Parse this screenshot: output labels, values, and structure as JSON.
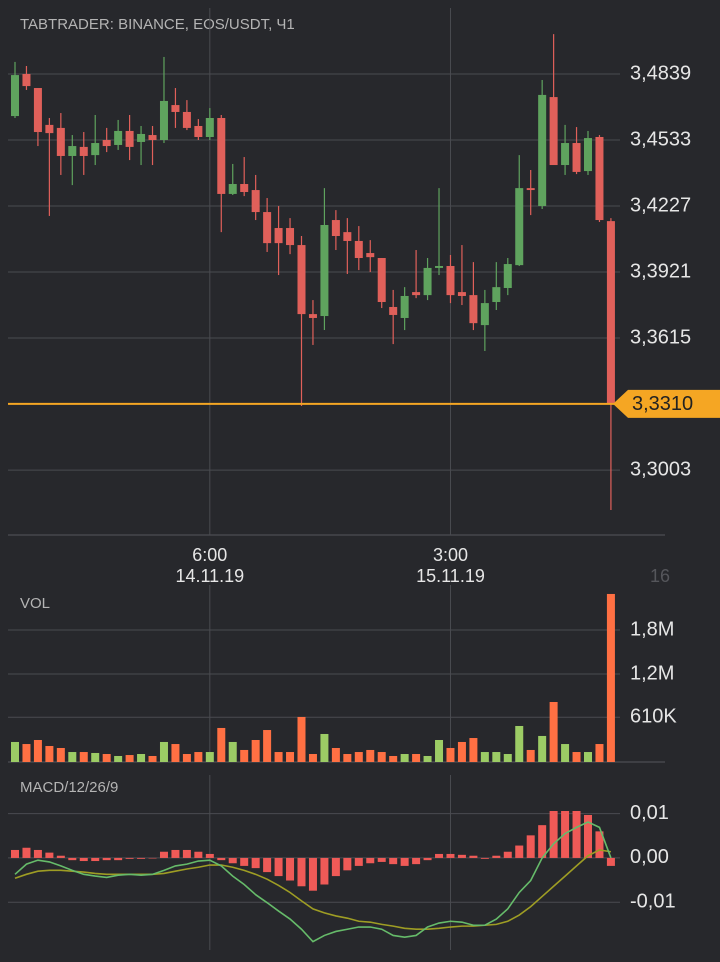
{
  "chart_data": [
    {
      "type": "candlestick",
      "title": "TABTRADER: BINANCE, EOS/USDT, Ч1",
      "categories": [
        null,
        null,
        null,
        null,
        null,
        null,
        null,
        null,
        null,
        null,
        null,
        null,
        null,
        null,
        null,
        null,
        null,
        "6:00",
        null,
        null,
        null,
        null,
        null,
        null,
        null,
        null,
        null,
        null,
        null,
        null,
        null,
        null,
        null,
        null,
        null,
        null,
        null,
        null,
        "3:00",
        null,
        null,
        null,
        null,
        null,
        null,
        null,
        null,
        null,
        null,
        null,
        null,
        null,
        null
      ],
      "category_dates": [
        null,
        null,
        null,
        null,
        null,
        null,
        null,
        null,
        null,
        null,
        null,
        null,
        null,
        null,
        null,
        null,
        null,
        "14.11.19",
        null,
        null,
        null,
        null,
        null,
        null,
        null,
        null,
        null,
        null,
        null,
        null,
        null,
        null,
        null,
        null,
        null,
        null,
        null,
        null,
        "15.11.19",
        null,
        null,
        null,
        null,
        null,
        null,
        null,
        null,
        null,
        null,
        null,
        null,
        null,
        null
      ],
      "edge_label": "16",
      "open": [
        3.4644,
        3.4839,
        3.4774,
        3.4603,
        3.4589,
        3.4459,
        3.4501,
        3.4463,
        3.4533,
        3.451,
        3.4575,
        3.4524,
        3.4556,
        3.4533,
        3.4695,
        3.4663,
        3.4598,
        3.4547,
        3.4635,
        3.4283,
        3.4329,
        3.4301,
        3.4199,
        3.4125,
        3.4125,
        3.4046,
        3.3726,
        3.3717,
        3.4162,
        3.4106,
        3.4065,
        3.4009,
        3.3986,
        3.3759,
        3.3708,
        3.3828,
        3.3814,
        3.394,
        3.3949,
        3.3828,
        3.3814,
        3.3675,
        3.3782,
        3.3847,
        3.3953,
        3.431,
        3.4227,
        3.4732,
        3.4417,
        3.4519,
        3.4389,
        3.4547,
        3.4157
      ],
      "high": [
        3.4895,
        3.4876,
        3.4774,
        3.4635,
        3.4658,
        3.4556,
        3.457,
        3.4649,
        3.4589,
        3.4626,
        3.4649,
        3.4598,
        3.4598,
        3.4918,
        3.4774,
        3.4718,
        3.463,
        3.4681,
        3.4649,
        3.4422,
        3.4454,
        3.4371,
        3.4264,
        3.4227,
        3.4171,
        3.4088,
        3.3791,
        3.431,
        3.4208,
        3.4171,
        3.4134,
        3.4069,
        3.3986,
        3.3838,
        3.3851,
        3.4023,
        3.3986,
        3.431,
        3.4,
        3.4046,
        3.3967,
        3.3838,
        3.3967,
        3.3986,
        3.4463,
        3.4394,
        3.4811,
        3.5024,
        3.4603,
        3.4593,
        3.4575,
        3.4556,
        3.4171
      ],
      "low": [
        3.4635,
        3.4765,
        3.4505,
        3.4181,
        3.4371,
        3.4324,
        3.4371,
        3.4417,
        3.4477,
        3.4487,
        3.444,
        3.4417,
        3.4417,
        3.4519,
        3.4589,
        3.4579,
        3.4533,
        3.4533,
        3.4106,
        3.4278,
        3.4273,
        3.4162,
        3.4014,
        3.3907,
        3.4004,
        3.33,
        3.3583,
        3.3652,
        3.4023,
        3.3912,
        3.393,
        3.3921,
        3.3754,
        3.3587,
        3.3652,
        3.38,
        3.3791,
        3.3907,
        3.3777,
        3.3768,
        3.3652,
        3.3555,
        3.3745,
        3.3814,
        3.3949,
        3.4185,
        3.4213,
        3.4417,
        3.4371,
        3.4375,
        3.4371,
        3.4153,
        3.2818
      ],
      "close": [
        3.4834,
        3.4783,
        3.457,
        3.4565,
        3.4459,
        3.4505,
        3.4459,
        3.4519,
        3.4505,
        3.4575,
        3.4501,
        3.4561,
        3.4533,
        3.4714,
        3.4663,
        3.4589,
        3.4547,
        3.4635,
        3.4283,
        3.4329,
        3.4292,
        3.4199,
        3.4055,
        3.4055,
        3.4046,
        3.3726,
        3.3708,
        3.4139,
        3.4088,
        3.4065,
        3.3986,
        3.399,
        3.3782,
        3.3722,
        3.381,
        3.3814,
        3.394,
        3.3949,
        3.3814,
        3.381,
        3.3684,
        3.3777,
        3.3851,
        3.3958,
        3.431,
        3.4301,
        3.4742,
        3.4417,
        3.4519,
        3.4385,
        3.4542,
        3.4162,
        3.331
      ],
      "up_color": "#5fa35e",
      "down_color": "#e0605a",
      "last_price": {
        "value": 3.331,
        "label": "3,3310"
      },
      "last_price_color": "#f5a623",
      "ylim": [
        3.2702,
        3.5182
      ],
      "yticks": [
        {
          "value": 3.3003,
          "label": "3,3003"
        },
        {
          "value": 3.3615,
          "label": "3,3615"
        },
        {
          "value": 3.3921,
          "label": "3,3921"
        },
        {
          "value": 3.4227,
          "label": "3,4227"
        },
        {
          "value": 3.4533,
          "label": "3,4533"
        },
        {
          "value": 3.4839,
          "label": "3,4839"
        }
      ],
      "grid": true
    },
    {
      "type": "bar",
      "title": "VOL",
      "values": [
        273000,
        245000,
        300000,
        218000,
        191000,
        136000,
        136000,
        123000,
        109000,
        82000,
        95000,
        109000,
        82000,
        273000,
        245000,
        109000,
        136000,
        136000,
        464000,
        273000,
        164000,
        300000,
        436000,
        136000,
        136000,
        614000,
        109000,
        382000,
        191000,
        109000,
        136000,
        164000,
        136000,
        82000,
        109000,
        109000,
        82000,
        300000,
        191000,
        273000,
        327000,
        136000,
        136000,
        109000,
        491000,
        164000,
        355000,
        818000,
        245000,
        136000,
        136000,
        245000,
        2291000
      ],
      "up_color": "#9ccc65",
      "down_color": "#ff7043",
      "ylim": [
        0,
        2345000
      ],
      "yticks": [
        {
          "value": 610000,
          "label": "610K"
        },
        {
          "value": 1200000,
          "label": "1,2M"
        },
        {
          "value": 1800000,
          "label": "1,8M"
        }
      ],
      "grid": true
    },
    {
      "type": "macd",
      "title": "MACD/12/26/9",
      "histogram": [
        0.0018,
        0.0023,
        0.0018,
        0.0012,
        0.0005,
        -0.0005,
        -0.0007,
        -0.0007,
        -0.0005,
        -0.0005,
        -0.0002,
        -0.0002,
        0,
        0.0014,
        0.0018,
        0.0018,
        0.0014,
        0.0009,
        -0.0005,
        -0.0012,
        -0.0018,
        -0.0023,
        -0.0032,
        -0.0041,
        -0.0051,
        -0.0064,
        -0.0074,
        -0.006,
        -0.0041,
        -0.0028,
        -0.0018,
        -0.0012,
        -0.0009,
        -0.0014,
        -0.0018,
        -0.0014,
        -0.0005,
        0.0009,
        0.0009,
        0.0007,
        0.0005,
        -0.0002,
        0.0005,
        0.0014,
        0.0028,
        0.0051,
        0.0074,
        0.0106,
        0.0106,
        0.0106,
        0.0097,
        0.006,
        -0.0018
      ],
      "macd": [
        -0.0037,
        -0.0014,
        -0.0005,
        -0.0009,
        -0.0018,
        -0.0028,
        -0.0037,
        -0.0041,
        -0.0044,
        -0.0039,
        -0.0037,
        -0.0039,
        -0.0037,
        -0.0028,
        -0.0018,
        -0.0014,
        -0.0007,
        -0.0005,
        -0.0018,
        -0.0041,
        -0.006,
        -0.0083,
        -0.0101,
        -0.012,
        -0.0138,
        -0.0161,
        -0.0189,
        -0.0175,
        -0.0166,
        -0.0161,
        -0.0156,
        -0.0156,
        -0.0161,
        -0.0175,
        -0.0179,
        -0.0175,
        -0.0156,
        -0.0147,
        -0.0143,
        -0.0145,
        -0.0152,
        -0.0152,
        -0.0138,
        -0.0115,
        -0.0078,
        -0.0051,
        0,
        0.0032,
        0.0055,
        0.0069,
        0.0081,
        0.0069,
        0
      ],
      "signal": [
        -0.0046,
        -0.0037,
        -0.003,
        -0.0028,
        -0.0028,
        -0.003,
        -0.0032,
        -0.0035,
        -0.0037,
        -0.0037,
        -0.0037,
        -0.0037,
        -0.0037,
        -0.0035,
        -0.003,
        -0.0025,
        -0.0021,
        -0.0016,
        -0.0016,
        -0.0021,
        -0.0028,
        -0.0037,
        -0.0048,
        -0.0062,
        -0.0078,
        -0.0097,
        -0.0115,
        -0.0124,
        -0.0131,
        -0.0136,
        -0.0143,
        -0.0145,
        -0.015,
        -0.0154,
        -0.0159,
        -0.0161,
        -0.0161,
        -0.0159,
        -0.0156,
        -0.0154,
        -0.0154,
        -0.0152,
        -0.015,
        -0.0143,
        -0.0129,
        -0.011,
        -0.0087,
        -0.0064,
        -0.0041,
        -0.0018,
        0.0005,
        0.0018,
        0.0014
      ],
      "histogram_color": "#ef5a57",
      "macd_color": "#66bb6a",
      "signal_color": "#9e9d24",
      "ylim": [
        -0.0235,
        0.0176
      ],
      "yticks": [
        {
          "value": -0.01,
          "label": "-0,01"
        },
        {
          "value": 0,
          "label": "0,00"
        },
        {
          "value": 0.01,
          "label": "0,01"
        }
      ],
      "grid": true
    }
  ]
}
